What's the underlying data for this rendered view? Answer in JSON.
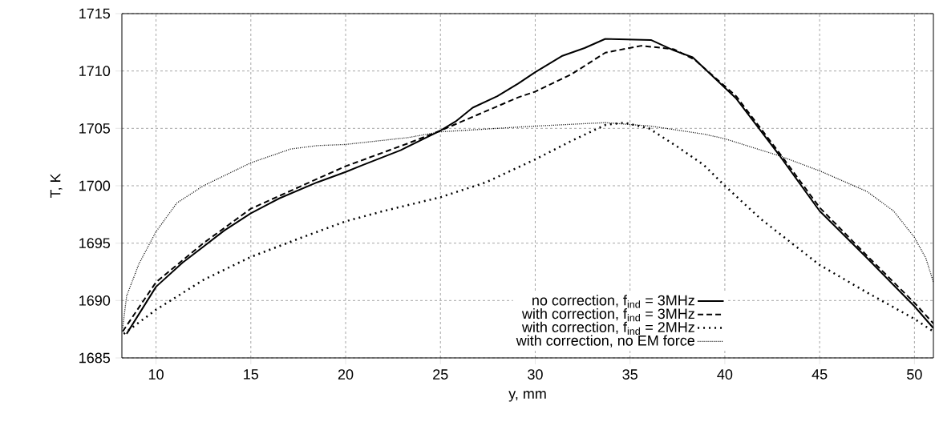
{
  "chart_data": {
    "type": "line",
    "xlabel": "y, mm",
    "ylabel": "T, K",
    "xlim": [
      8.2,
      51
    ],
    "ylim": [
      1685,
      1715
    ],
    "xticks": [
      10,
      15,
      20,
      25,
      30,
      35,
      40,
      45,
      50
    ],
    "yticks": [
      1685,
      1690,
      1695,
      1700,
      1705,
      1710,
      1715
    ],
    "grid": true,
    "legend": "bottom right",
    "series": [
      {
        "name": "no correction, f$_{ind}$ = 3MHz",
        "color": "#000000",
        "line_style": "solid",
        "x": [
          8.45,
          10,
          11.4,
          12.5,
          13.6,
          15,
          16.5,
          18.5,
          20,
          20.9,
          22.9,
          25,
          25.8,
          26.7,
          28,
          29.1,
          30,
          31.4,
          32.6,
          33.7,
          36.1,
          37.3,
          38.3,
          40.6,
          42.9,
          45,
          47.5,
          50,
          51
        ],
        "values": [
          1687.1,
          1691.2,
          1693.3,
          1694.7,
          1696.1,
          1697.6,
          1698.9,
          1700.3,
          1701.2,
          1701.8,
          1703.1,
          1704.8,
          1705.6,
          1706.8,
          1707.8,
          1708.9,
          1709.9,
          1711.3,
          1712.0,
          1712.8,
          1712.7,
          1711.8,
          1711.2,
          1707.6,
          1702.6,
          1697.8,
          1693.7,
          1689.5,
          1687.6
        ]
      },
      {
        "name": "with correction, f$_{ind}$ = 3MHz",
        "color": "#000000",
        "line_style": "dashed",
        "x": [
          8.24,
          10,
          12.5,
          15,
          18.5,
          20,
          23.3,
          25,
          26.7,
          29.1,
          30,
          31.9,
          33.7,
          35.6,
          37.3,
          38.4,
          40.6,
          42.9,
          45,
          47.5,
          50,
          51
        ],
        "values": [
          1687.3,
          1691.6,
          1695.0,
          1698.0,
          1700.6,
          1701.7,
          1703.7,
          1704.8,
          1706.0,
          1707.7,
          1708.2,
          1709.7,
          1711.6,
          1712.2,
          1711.9,
          1711.0,
          1707.8,
          1702.8,
          1698.1,
          1693.9,
          1689.8,
          1688.0
        ]
      },
      {
        "name": "with correction, f$_{ind}$ = 2MHz",
        "color": "#000000",
        "line_style": "dotted",
        "x": [
          8.3,
          10,
          12.5,
          15,
          17.7,
          20,
          22,
          25,
          27.4,
          30,
          31.9,
          33.7,
          34.7,
          36,
          37.5,
          38.9,
          40,
          41.9,
          45,
          47.5,
          50,
          51
        ],
        "values": [
          1687.1,
          1689.2,
          1691.8,
          1693.8,
          1695.5,
          1696.9,
          1697.8,
          1699.0,
          1700.3,
          1702.3,
          1703.9,
          1705.3,
          1705.5,
          1705.0,
          1703.4,
          1701.8,
          1700.0,
          1697.1,
          1693.1,
          1690.7,
          1688.4,
          1687.3
        ]
      },
      {
        "name": "with correction, no EM force",
        "color": "#000000",
        "line_style": "densely dotted",
        "x": [
          8.24,
          8.45,
          9.1,
          10,
          11.1,
          12.5,
          15,
          17.1,
          18.5,
          20,
          23.3,
          25,
          30,
          33.7,
          36.1,
          38.9,
          40,
          42.9,
          45,
          47.5,
          48.9,
          50,
          50.6,
          51
        ],
        "values": [
          1687.6,
          1690.4,
          1693.2,
          1696.0,
          1698.5,
          1700.0,
          1702.0,
          1703.2,
          1703.5,
          1703.6,
          1704.2,
          1704.7,
          1705.2,
          1705.5,
          1705.2,
          1704.5,
          1704.1,
          1702.6,
          1701.3,
          1699.5,
          1697.8,
          1695.5,
          1693.7,
          1691.6
        ]
      }
    ]
  }
}
